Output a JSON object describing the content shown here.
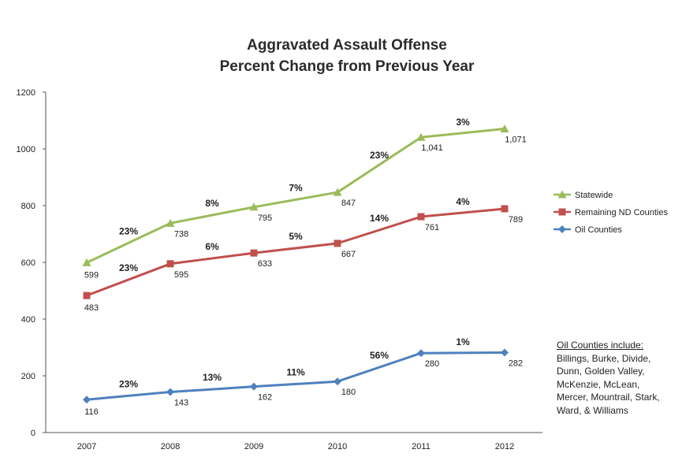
{
  "chart_data": {
    "type": "line",
    "title": [
      "Aggravated Assault Offense",
      "Percent Change from Previous Year"
    ],
    "xlabel": "",
    "ylabel": "",
    "categories": [
      "2007",
      "2008",
      "2009",
      "2010",
      "2011",
      "2012"
    ],
    "ylim": [
      0,
      1200
    ],
    "yticks": [
      "0",
      "200",
      "400",
      "600",
      "800",
      "1000",
      "1200"
    ],
    "grid": false,
    "legend_position": "right",
    "series": [
      {
        "name": "Statewide",
        "color": "#9bbb59",
        "marker": "triangle",
        "values": [
          599,
          738,
          795,
          847,
          1041,
          1071
        ],
        "value_labels": [
          "599",
          "738",
          "795",
          "847",
          "1,041",
          "1,071"
        ],
        "pct_change_labels": [
          "23%",
          "8%",
          "7%",
          "23%",
          "3%"
        ]
      },
      {
        "name": "Remaining ND Counties",
        "color": "#c0504d",
        "marker": "square",
        "values": [
          483,
          595,
          633,
          667,
          761,
          789
        ],
        "value_labels": [
          "483",
          "595",
          "633",
          "667",
          "761",
          "789"
        ],
        "pct_change_labels": [
          "23%",
          "6%",
          "5%",
          "14%",
          "4%"
        ]
      },
      {
        "name": "Oil Counties",
        "color": "#4f81bd",
        "marker": "diamond",
        "values": [
          116,
          143,
          162,
          180,
          280,
          282
        ],
        "value_labels": [
          "116",
          "143",
          "162",
          "180",
          "280",
          "282"
        ],
        "pct_change_labels": [
          "23%",
          "13%",
          "11%",
          "56%",
          "1%"
        ]
      }
    ]
  },
  "note": {
    "title": "Oil Counties include:",
    "lines": [
      "Billings, Burke, Divide,",
      "Dunn, Golden Valley,",
      "McKenzie, McLean,",
      "Mercer, Mountrail, Stark,",
      "Ward, & Williams"
    ]
  }
}
